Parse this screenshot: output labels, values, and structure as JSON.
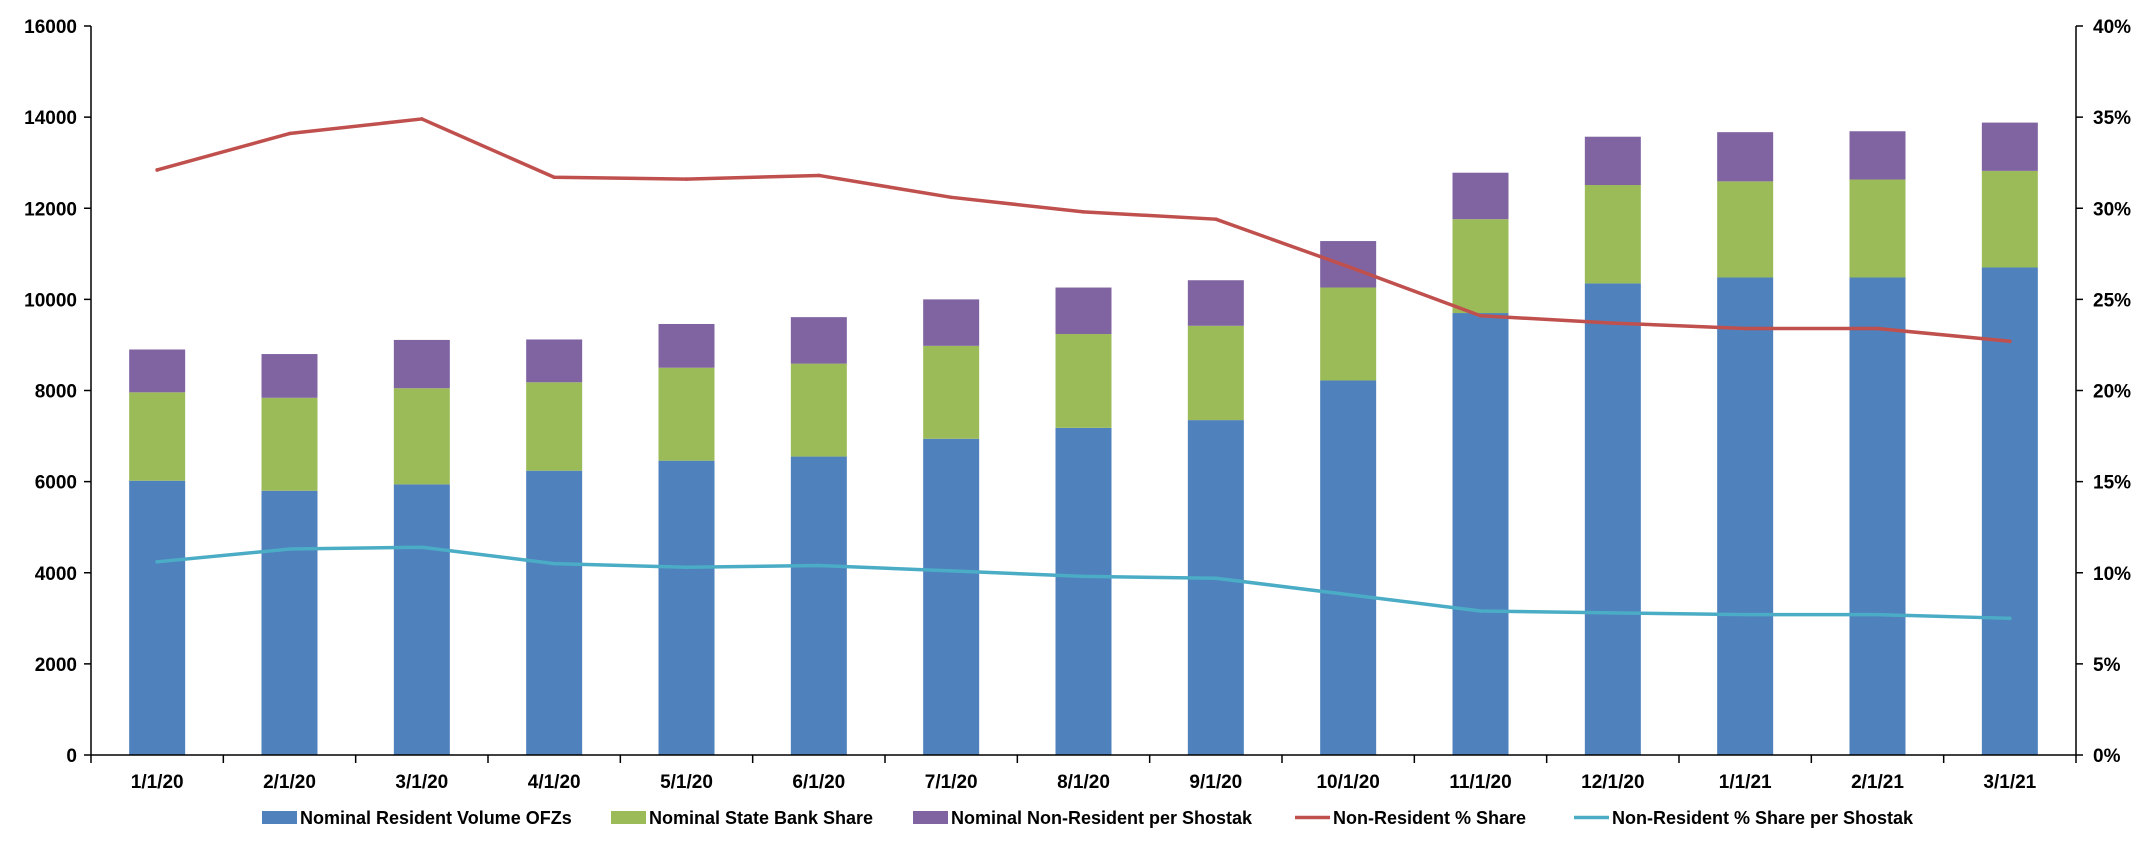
{
  "chart_data": {
    "type": "bar",
    "stacked": true,
    "categories": [
      "1/1/20",
      "2/1/20",
      "3/1/20",
      "4/1/20",
      "5/1/20",
      "6/1/20",
      "7/1/20",
      "8/1/20",
      "9/1/20",
      "10/1/20",
      "11/1/20",
      "12/1/20",
      "1/1/21",
      "2/1/21",
      "3/1/21"
    ],
    "left_axis": {
      "ylim": [
        0,
        16000
      ],
      "ticks": [
        0,
        2000,
        4000,
        6000,
        8000,
        10000,
        12000,
        14000,
        16000
      ],
      "tick_labels": [
        "0",
        "2000",
        "4000",
        "6000",
        "8000",
        "10000",
        "12000",
        "14000",
        "16000"
      ]
    },
    "right_axis": {
      "ylim": [
        0,
        40
      ],
      "ticks": [
        0,
        5,
        10,
        15,
        20,
        25,
        30,
        35,
        40
      ],
      "tick_labels": [
        "0%",
        "5%",
        "10%",
        "15%",
        "20%",
        "25%",
        "30%",
        "35%",
        "40%"
      ]
    },
    "bar_series": [
      {
        "name": "Nominal Resident Volume OFZs",
        "color": "#4F81BD",
        "values": [
          6020,
          5800,
          5940,
          6240,
          6460,
          6550,
          6940,
          7180,
          7350,
          8220,
          9700,
          10350,
          10480,
          10480,
          10700
        ]
      },
      {
        "name": "Nominal State Bank Share",
        "color": "#9BBB59",
        "values": [
          1940,
          2040,
          2110,
          1940,
          2040,
          2040,
          2040,
          2060,
          2070,
          2040,
          2060,
          2160,
          2110,
          2150,
          2120
        ]
      },
      {
        "name": "Nominal Non-Resident per Shostak",
        "color": "#8064A2",
        "values": [
          940,
          960,
          1060,
          940,
          960,
          1020,
          1020,
          1020,
          1000,
          1020,
          1020,
          1060,
          1080,
          1060,
          1060
        ]
      }
    ],
    "line_series": [
      {
        "name": "Non-Resident % Share",
        "color": "#C0504D",
        "values": [
          32.1,
          34.1,
          34.9,
          31.7,
          31.6,
          31.8,
          30.6,
          29.8,
          29.4,
          26.8,
          24.1,
          23.7,
          23.4,
          23.4,
          22.7
        ]
      },
      {
        "name": "Non-Resident % Share per Shostak",
        "color": "#4BACC6",
        "values": [
          10.6,
          11.3,
          11.4,
          10.5,
          10.3,
          10.4,
          10.1,
          9.8,
          9.7,
          8.8,
          7.9,
          7.8,
          7.7,
          7.7,
          7.5
        ]
      }
    ],
    "grid": false,
    "legend_position": "bottom"
  }
}
